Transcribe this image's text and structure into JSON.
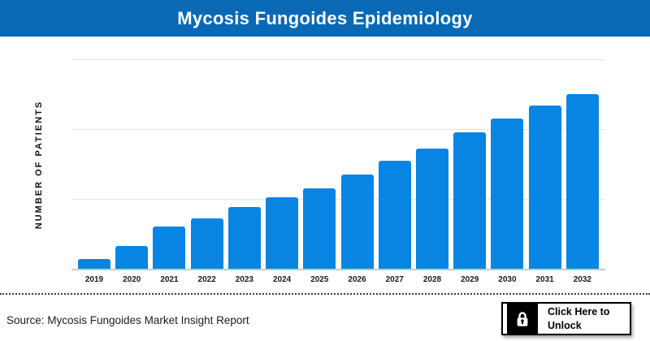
{
  "header": {
    "title": "Mycosis Fungoides Epidemiology",
    "background_color": "#0a69b4",
    "text_color": "#ffffff"
  },
  "chart_data": {
    "type": "bar",
    "title": "Mycosis Fungoides Epidemiology",
    "xlabel": "",
    "ylabel": "NUMBER OF PATIENTS",
    "categories": [
      "2019",
      "2020",
      "2021",
      "2022",
      "2023",
      "2024",
      "2025",
      "2026",
      "2027",
      "2028",
      "2029",
      "2030",
      "2031",
      "2032"
    ],
    "values_grid_units": [
      0.14,
      0.33,
      0.6,
      0.72,
      0.88,
      1.02,
      1.15,
      1.35,
      1.55,
      1.72,
      1.95,
      2.15,
      2.34,
      2.5
    ],
    "ylim": [
      0,
      3
    ],
    "y_tick_labels": [],
    "gridlines": "horizontal, 3 light-gray lines, evenly spaced, no numeric labels shown",
    "legend": "none",
    "bar_color": "#0884e3",
    "note": "y-axis values are hidden; bar values expressed in gridline-interval units estimated from pixels"
  },
  "footer": {
    "source_text": "Source: Mycosis Fungoides Market Insight Report",
    "unlock_button": {
      "line1": "Click Here to",
      "line2": "Unlock",
      "icon": "lock-icon"
    }
  },
  "colors": {
    "header_blue": "#0a69b4",
    "bar_blue": "#0884e3",
    "gridline_gray": "#e4e4e4",
    "axis_gray": "#c9c9c9"
  }
}
